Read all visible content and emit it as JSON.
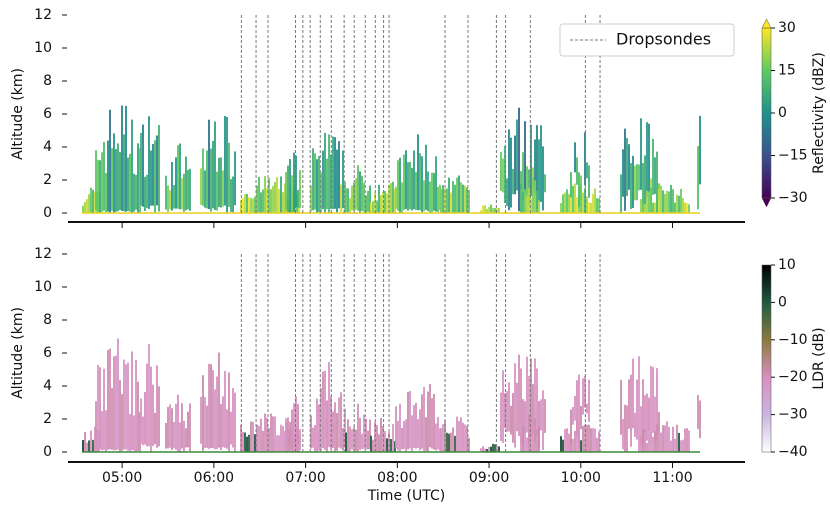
{
  "chart_data": [
    {
      "type": "heatmap",
      "ylabel": "Altitude (km)",
      "ylim": [
        0,
        12
      ],
      "yticks": [
        0,
        2,
        4,
        6,
        8,
        10,
        12
      ],
      "xlim": [
        4.41,
        11.79
      ],
      "xticks": [
        5,
        6,
        7,
        8,
        9,
        10,
        11
      ],
      "colorbar": {
        "label": "Reflectivity (dBZ)",
        "lim": [
          -30,
          30
        ],
        "ticks": [
          {
            "value": -30,
            "label": "−30"
          },
          {
            "value": -15,
            "label": "−15"
          },
          0,
          15,
          30
        ]
      },
      "dropsondes": {
        "name": "Dropsondes",
        "x": [
          6.3,
          6.46,
          6.59,
          6.89,
          6.97,
          7.05,
          7.16,
          7.28,
          7.42,
          7.53,
          7.65,
          7.76,
          7.85,
          7.91,
          8.52,
          8.77,
          9.08,
          9.18,
          9.45,
          10.05,
          10.21
        ]
      },
      "legend": "upper right"
    },
    {
      "type": "heatmap",
      "ylabel": "Altitude (km)",
      "xlabel": "Time (UTC)",
      "ylim": [
        0,
        12
      ],
      "yticks": [
        0,
        2,
        4,
        6,
        8,
        10,
        12
      ],
      "xlim": [
        4.41,
        11.79
      ],
      "xticks": [
        {
          "value": 5,
          "label": "05:00"
        },
        {
          "value": 6,
          "label": "06:00"
        },
        {
          "value": 7,
          "label": "07:00"
        },
        {
          "value": 8,
          "label": "08:00"
        },
        {
          "value": 9,
          "label": "09:00"
        },
        {
          "value": 10,
          "label": "10:00"
        },
        {
          "value": 11,
          "label": "11:00"
        }
      ],
      "colorbar": {
        "label": "LDR (dB)",
        "lim": [
          -40,
          10
        ],
        "ticks": [
          {
            "value": -40,
            "label": "−40"
          },
          {
            "value": -30,
            "label": "−30"
          },
          {
            "value": -20,
            "label": "−20"
          },
          {
            "value": -10,
            "label": "−10"
          },
          0,
          10
        ]
      },
      "dropsondes": {
        "x": [
          6.3,
          6.46,
          6.59,
          6.89,
          6.97,
          7.05,
          7.16,
          7.28,
          7.42,
          7.53,
          7.65,
          7.76,
          7.85,
          7.91,
          8.52,
          8.77,
          9.08,
          9.18,
          9.45,
          10.05,
          10.21
        ]
      }
    }
  ]
}
